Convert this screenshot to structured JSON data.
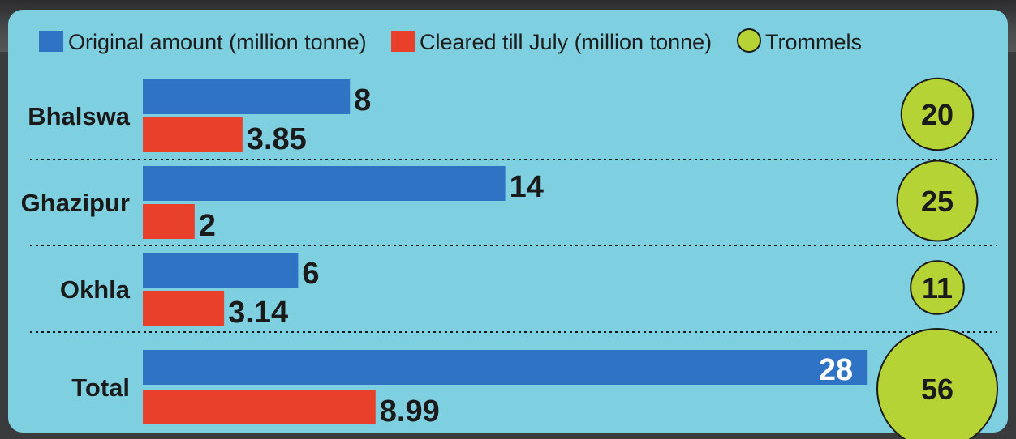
{
  "chart_data": {
    "type": "bar",
    "orientation": "horizontal",
    "categories": [
      "Bhalswa",
      "Ghazipur",
      "Okhla",
      "Total"
    ],
    "series": [
      {
        "name": "Original amount (million tonne)",
        "values": [
          8,
          14,
          6,
          28
        ],
        "value_labels": [
          "8",
          "14",
          "6",
          "28"
        ],
        "color": "#2f73c4"
      },
      {
        "name": "Cleared till July (million tonne)",
        "values": [
          3.85,
          2,
          3.14,
          8.99
        ],
        "value_labels": [
          "3.85",
          "2",
          "3.14",
          "8.99"
        ],
        "color": "#e8402a"
      }
    ],
    "bubbles": {
      "name": "Trommels",
      "values": [
        20,
        25,
        11,
        56
      ],
      "value_labels": [
        "20",
        "25",
        "11",
        "56"
      ],
      "color": "#b5d334"
    },
    "xlim": [
      0,
      28
    ],
    "legend": "top-left",
    "grid": false,
    "row_separators": "dotted"
  }
}
